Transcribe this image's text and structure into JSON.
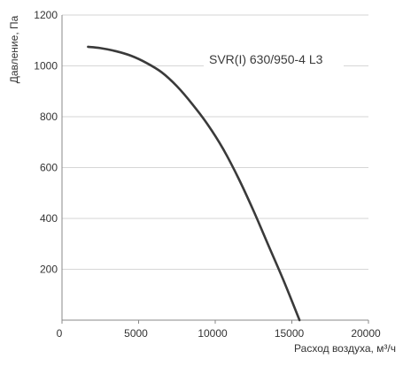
{
  "chart_data": {
    "type": "line",
    "title": "",
    "xlabel": "Расход воздуха, м³/ч",
    "ylabel": "Давление, Па",
    "xlim": [
      0,
      20000
    ],
    "ylim": [
      0,
      1200
    ],
    "x_ticks": [
      0,
      5000,
      10000,
      15000,
      20000
    ],
    "y_ticks": [
      200,
      400,
      600,
      800,
      1000,
      1200
    ],
    "grid": "horizontal",
    "series": [
      {
        "name": "SVR(I) 630/950-4 L3",
        "color": "#3a3a3a",
        "points": [
          [
            1700,
            1075
          ],
          [
            2500,
            1070
          ],
          [
            3500,
            1058
          ],
          [
            4500,
            1040
          ],
          [
            5500,
            1012
          ],
          [
            6500,
            975
          ],
          [
            7500,
            920
          ],
          [
            8500,
            850
          ],
          [
            9500,
            770
          ],
          [
            10500,
            675
          ],
          [
            11500,
            560
          ],
          [
            12500,
            430
          ],
          [
            13500,
            290
          ],
          [
            14500,
            150
          ],
          [
            15500,
            0
          ]
        ]
      }
    ],
    "annotation": "SVR(I) 630/950-4 L3"
  }
}
